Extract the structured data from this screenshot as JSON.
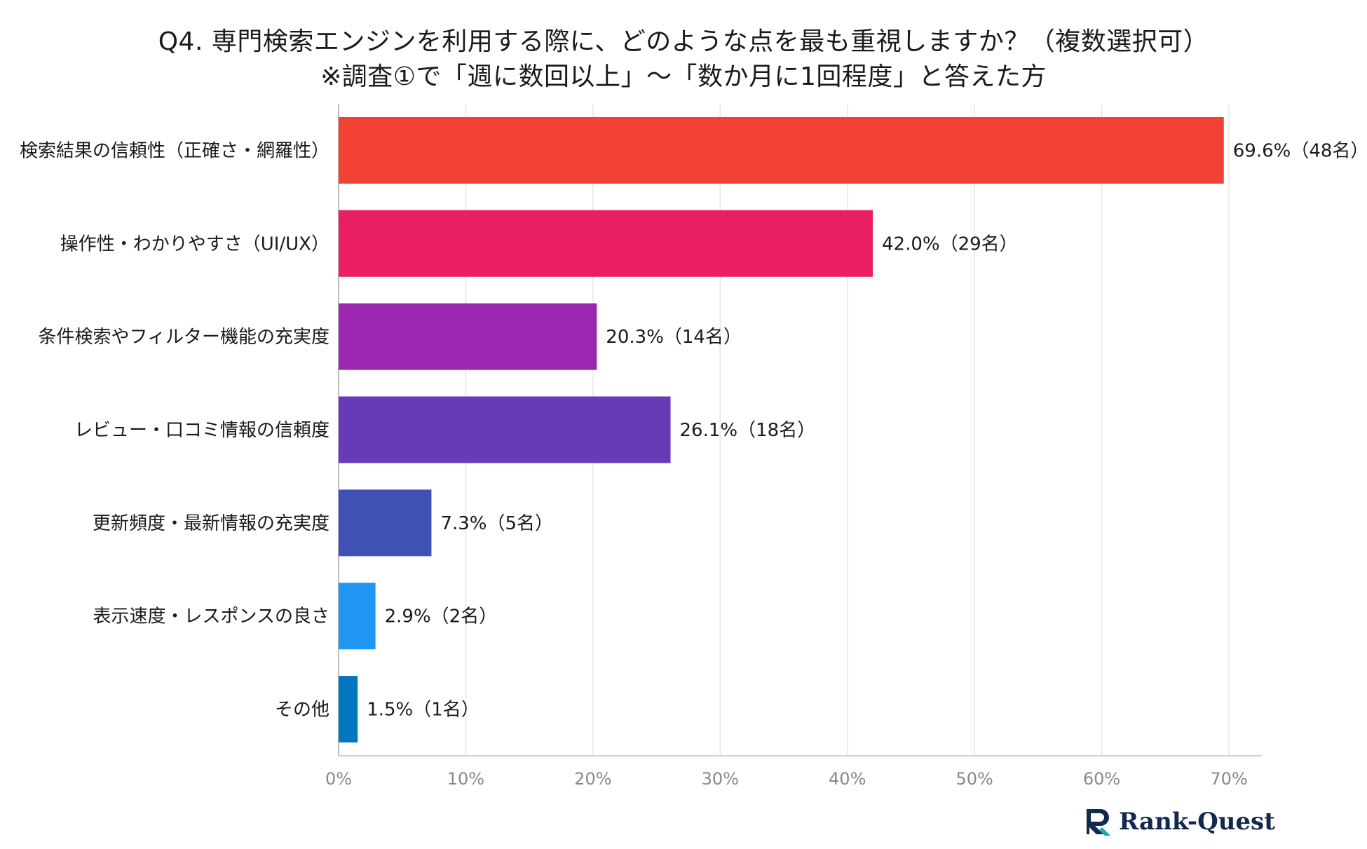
{
  "chart_data": {
    "type": "bar",
    "orientation": "horizontal",
    "title": "Q4. 専門検索エンジンを利用する際に、どのような点を最も重視しますか？（複数選択可）",
    "subtitle": "※調査①で「週に数回以上」～「数か月に1回程度」と答えた方",
    "categories": [
      "検索結果の信頼性（正確さ・網羅性）",
      "操作性・わかりやすさ（UI/UX）",
      "条件検索やフィルター機能の充実度",
      "レビュー・口コミ情報の信頼度",
      "更新頻度・最新情報の充実度",
      "表示速度・レスポンスの良さ",
      "その他"
    ],
    "values": [
      69.6,
      42.0,
      20.3,
      26.1,
      7.3,
      2.9,
      1.5
    ],
    "counts": [
      48,
      29,
      14,
      18,
      5,
      2,
      1
    ],
    "data_labels": [
      "69.6%（48名）",
      "42.0%（29名）",
      "20.3%（14名）",
      "26.1%（18名）",
      "7.3%（5名）",
      "2.9%（2名）",
      "1.5%（1名）"
    ],
    "colors": [
      "#f24236",
      "#e91e63",
      "#9c27b0",
      "#673ab7",
      "#3f51b5",
      "#2196f3",
      "#0277bd"
    ],
    "xlim": [
      0,
      70
    ],
    "xticks": [
      0,
      10,
      20,
      30,
      40,
      50,
      60,
      70
    ],
    "xtick_labels": [
      "0%",
      "10%",
      "20%",
      "30%",
      "40%",
      "50%",
      "60%",
      "70%"
    ],
    "grid": true,
    "xlabel": "",
    "ylabel": ""
  },
  "brand": {
    "logo_text": "Rank-Quest",
    "logo_icon": "rank-quest-logo-icon",
    "colors": {
      "navy": "#12294d",
      "teal": "#1fa8a0"
    }
  }
}
